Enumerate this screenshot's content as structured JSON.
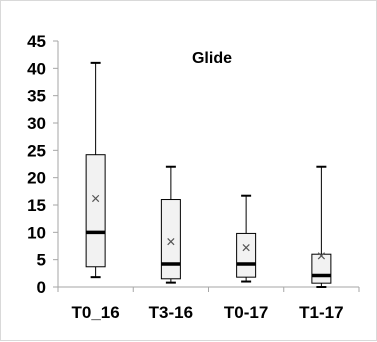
{
  "chart_data": {
    "type": "boxplot",
    "title": "Glide",
    "xlabel": "",
    "ylabel": "",
    "ylim": [
      0,
      45
    ],
    "yticks": [
      "0",
      "5",
      "10",
      "15",
      "20",
      "25",
      "30",
      "35",
      "40",
      "45"
    ],
    "grid": false,
    "categories": [
      "T0_16",
      "T3-16",
      "T0-17",
      "T1-17"
    ],
    "boxes": [
      {
        "min": 1.8,
        "q1": 3.7,
        "median": 10.0,
        "q3": 24.2,
        "max": 41.0,
        "mean": 16.2
      },
      {
        "min": 0.8,
        "q1": 1.5,
        "median": 4.2,
        "q3": 16.0,
        "max": 22.0,
        "mean": 8.3
      },
      {
        "min": 1.0,
        "q1": 1.8,
        "median": 4.2,
        "q3": 9.8,
        "max": 16.7,
        "mean": 7.2
      },
      {
        "min": 0.0,
        "q1": 0.7,
        "median": 2.1,
        "q3": 6.0,
        "max": 22.0,
        "mean": 5.7
      }
    ],
    "colors": {
      "box_fill": "#f2f2f2",
      "box_stroke": "#000000",
      "median": "#000000",
      "mean_marker": "#555555",
      "axis": "#a6a6a6"
    }
  }
}
